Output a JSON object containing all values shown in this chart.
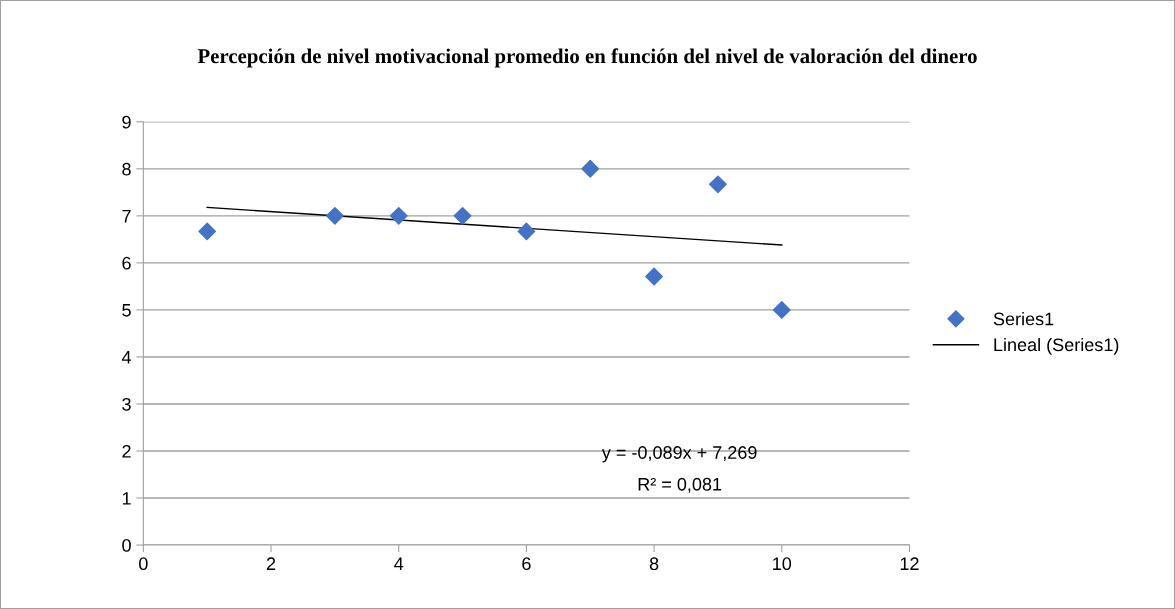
{
  "chart_data": {
    "type": "scatter",
    "title": "Percepción de nivel motivacional promedio en función del nivel de valoración del dinero",
    "x": [
      1,
      3,
      4,
      5,
      6,
      7,
      8,
      9,
      10
    ],
    "series": [
      {
        "name": "Series1",
        "color": "#4472c4",
        "marker": "diamond",
        "values": [
          6.67,
          7,
          7,
          7,
          6.67,
          8,
          5.71,
          7.67,
          5
        ]
      },
      {
        "name": "Lineal (Series1)",
        "type": "line",
        "color": "#000000",
        "x": [
          1,
          10
        ],
        "values": [
          7.18,
          6.38
        ],
        "marker": "none",
        "line_style": "solid"
      }
    ],
    "xlim": [
      0,
      12
    ],
    "xticks": [
      0,
      2,
      4,
      6,
      8,
      10,
      12
    ],
    "ylim": [
      0,
      9
    ],
    "yticks": [
      0,
      1,
      2,
      3,
      4,
      5,
      6,
      7,
      8,
      9
    ],
    "grid": "y",
    "legend": "right",
    "annotations": [
      "y = -0,089x + 7,269",
      "R² = 0,081"
    ]
  }
}
